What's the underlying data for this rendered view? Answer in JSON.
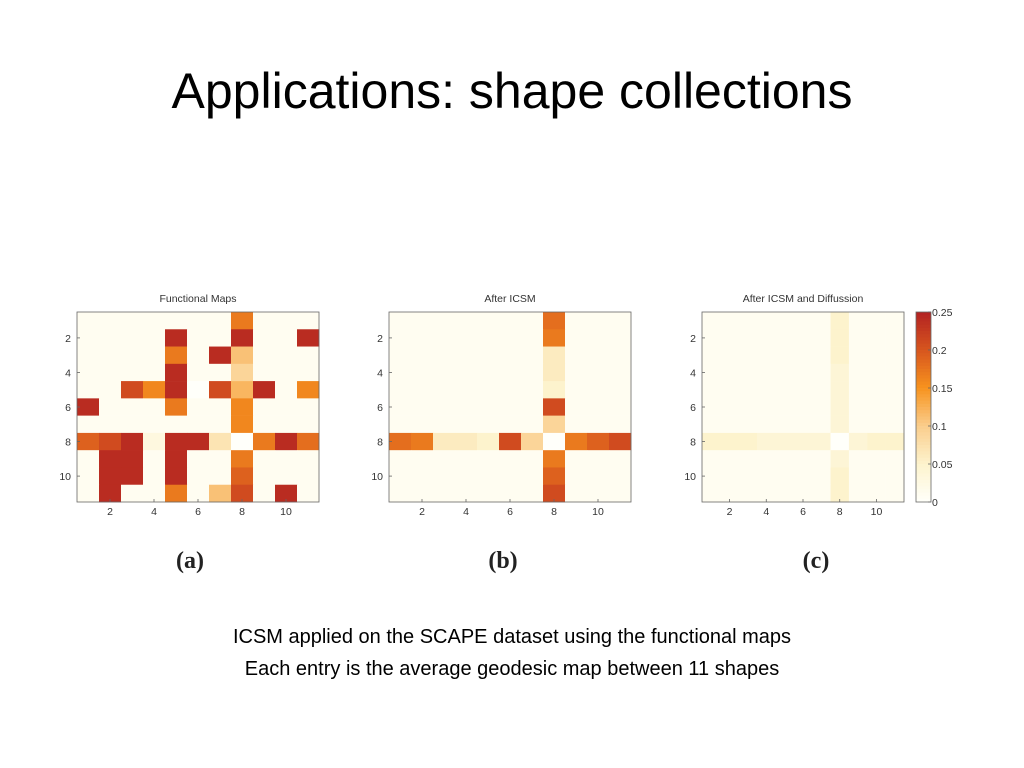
{
  "slide": {
    "title": "Applications: shape collections",
    "caption_line1": "ICSM applied on the SCAPE dataset using the functional maps",
    "caption_line2": "Each entry is the average geodesic map between 11 shapes"
  },
  "colors": {
    "colormap_low": "#fffff8",
    "colormap_mid": "#f7931e",
    "colormap_high": "#b22222"
  },
  "chart_data": [
    {
      "type": "heatmap",
      "panel_label": "(a)",
      "title": "Functional Maps",
      "x_ticks": [
        2,
        4,
        6,
        8,
        10
      ],
      "y_ticks": [
        2,
        4,
        6,
        8,
        10
      ],
      "vmin": 0,
      "vmax": 0.25,
      "values": [
        [
          0.01,
          0.01,
          0.01,
          0.01,
          0.01,
          0.01,
          0.01,
          0.17,
          0.01,
          0.01,
          0.01
        ],
        [
          0.01,
          0.01,
          0.01,
          0.01,
          0.24,
          0.01,
          0.01,
          0.24,
          0.01,
          0.01,
          0.24
        ],
        [
          0.01,
          0.01,
          0.01,
          0.01,
          0.17,
          0.01,
          0.24,
          0.11,
          0.01,
          0.01,
          0.01
        ],
        [
          0.01,
          0.01,
          0.01,
          0.01,
          0.24,
          0.01,
          0.01,
          0.09,
          0.01,
          0.01,
          0.01
        ],
        [
          0.01,
          0.01,
          0.21,
          0.16,
          0.24,
          0.0,
          0.21,
          0.12,
          0.24,
          0.01,
          0.16
        ],
        [
          0.24,
          0.01,
          0.01,
          0.01,
          0.17,
          0.01,
          0.01,
          0.16,
          0.01,
          0.01,
          0.01
        ],
        [
          0.01,
          0.01,
          0.01,
          0.01,
          0.01,
          0.01,
          0.01,
          0.16,
          0.01,
          0.01,
          0.01
        ],
        [
          0.19,
          0.21,
          0.24,
          0.03,
          0.24,
          0.24,
          0.07,
          0.0,
          0.17,
          0.24,
          0.18
        ],
        [
          0.01,
          0.24,
          0.24,
          0.01,
          0.24,
          0.01,
          0.01,
          0.17,
          0.01,
          0.01,
          0.01
        ],
        [
          0.01,
          0.24,
          0.24,
          0.01,
          0.24,
          0.01,
          0.01,
          0.19,
          0.01,
          0.01,
          0.01
        ],
        [
          0.01,
          0.24,
          0.01,
          0.01,
          0.17,
          0.01,
          0.11,
          0.21,
          0.01,
          0.24,
          0.01
        ]
      ]
    },
    {
      "type": "heatmap",
      "panel_label": "(b)",
      "title": "After ICSM",
      "x_ticks": [
        2,
        4,
        6,
        8,
        10
      ],
      "y_ticks": [
        2,
        4,
        6,
        8,
        10
      ],
      "vmin": 0,
      "vmax": 0.25,
      "values": [
        [
          0.01,
          0.01,
          0.01,
          0.01,
          0.01,
          0.01,
          0.01,
          0.18,
          0.01,
          0.01,
          0.01
        ],
        [
          0.01,
          0.01,
          0.01,
          0.01,
          0.01,
          0.01,
          0.01,
          0.17,
          0.01,
          0.01,
          0.01
        ],
        [
          0.01,
          0.01,
          0.01,
          0.01,
          0.01,
          0.01,
          0.01,
          0.06,
          0.01,
          0.01,
          0.01
        ],
        [
          0.01,
          0.01,
          0.01,
          0.01,
          0.01,
          0.01,
          0.01,
          0.06,
          0.01,
          0.01,
          0.01
        ],
        [
          0.01,
          0.01,
          0.01,
          0.01,
          0.01,
          0.01,
          0.01,
          0.05,
          0.01,
          0.01,
          0.01
        ],
        [
          0.01,
          0.01,
          0.01,
          0.01,
          0.01,
          0.01,
          0.01,
          0.21,
          0.01,
          0.01,
          0.01
        ],
        [
          0.01,
          0.01,
          0.01,
          0.01,
          0.01,
          0.01,
          0.01,
          0.09,
          0.01,
          0.01,
          0.01
        ],
        [
          0.18,
          0.17,
          0.06,
          0.06,
          0.05,
          0.21,
          0.09,
          0.0,
          0.17,
          0.19,
          0.21
        ],
        [
          0.01,
          0.01,
          0.01,
          0.01,
          0.01,
          0.01,
          0.01,
          0.17,
          0.01,
          0.01,
          0.01
        ],
        [
          0.01,
          0.01,
          0.01,
          0.01,
          0.01,
          0.01,
          0.01,
          0.19,
          0.01,
          0.01,
          0.01
        ],
        [
          0.01,
          0.01,
          0.01,
          0.01,
          0.01,
          0.01,
          0.01,
          0.21,
          0.01,
          0.01,
          0.01
        ]
      ]
    },
    {
      "type": "heatmap",
      "panel_label": "(c)",
      "title": "After ICSM and Diffussion",
      "x_ticks": [
        2,
        4,
        6,
        8,
        10
      ],
      "y_ticks": [
        2,
        4,
        6,
        8,
        10
      ],
      "vmin": 0,
      "vmax": 0.25,
      "colorbar_ticks": [
        0,
        0.05,
        0.1,
        0.15,
        0.2,
        0.25
      ],
      "values": [
        [
          0.01,
          0.01,
          0.01,
          0.01,
          0.01,
          0.01,
          0.01,
          0.05,
          0.01,
          0.01,
          0.01
        ],
        [
          0.01,
          0.01,
          0.01,
          0.01,
          0.01,
          0.01,
          0.01,
          0.05,
          0.01,
          0.01,
          0.01
        ],
        [
          0.01,
          0.01,
          0.01,
          0.01,
          0.01,
          0.01,
          0.01,
          0.05,
          0.01,
          0.01,
          0.01
        ],
        [
          0.01,
          0.01,
          0.01,
          0.01,
          0.01,
          0.01,
          0.01,
          0.04,
          0.01,
          0.01,
          0.01
        ],
        [
          0.01,
          0.01,
          0.01,
          0.01,
          0.01,
          0.01,
          0.01,
          0.04,
          0.01,
          0.01,
          0.01
        ],
        [
          0.01,
          0.01,
          0.01,
          0.01,
          0.01,
          0.01,
          0.01,
          0.04,
          0.01,
          0.01,
          0.01
        ],
        [
          0.01,
          0.01,
          0.01,
          0.01,
          0.01,
          0.01,
          0.01,
          0.04,
          0.01,
          0.01,
          0.01
        ],
        [
          0.05,
          0.05,
          0.05,
          0.04,
          0.04,
          0.04,
          0.04,
          0.0,
          0.04,
          0.05,
          0.05
        ],
        [
          0.01,
          0.01,
          0.01,
          0.01,
          0.01,
          0.01,
          0.01,
          0.04,
          0.01,
          0.01,
          0.01
        ],
        [
          0.01,
          0.01,
          0.01,
          0.01,
          0.01,
          0.01,
          0.01,
          0.05,
          0.01,
          0.01,
          0.01
        ],
        [
          0.01,
          0.01,
          0.01,
          0.01,
          0.01,
          0.01,
          0.01,
          0.05,
          0.01,
          0.01,
          0.01
        ]
      ]
    }
  ]
}
